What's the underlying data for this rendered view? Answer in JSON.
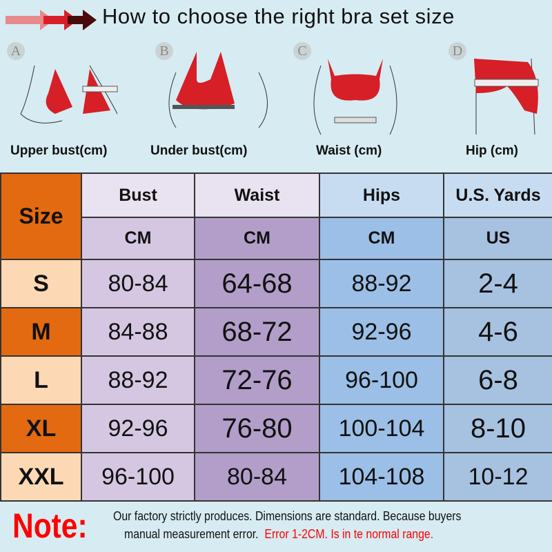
{
  "header": {
    "title": "How to choose the right bra set size"
  },
  "figures": [
    {
      "letter": "A",
      "caption": "Upper bust(cm)"
    },
    {
      "letter": "B",
      "caption": "Under bust(cm)"
    },
    {
      "letter": "C",
      "caption": "Waist (cm)"
    },
    {
      "letter": "D",
      "caption": "Hip (cm)"
    }
  ],
  "table": {
    "size_label": "Size",
    "columns": [
      {
        "name": "Bust",
        "unit": "CM"
      },
      {
        "name": "Waist",
        "unit": "CM"
      },
      {
        "name": "Hips",
        "unit": "CM"
      },
      {
        "name": "U.S. Yards",
        "unit": "US"
      }
    ],
    "rows": [
      {
        "size": "S",
        "values": [
          "80-84",
          "64-68",
          "88-92",
          "2-4"
        ]
      },
      {
        "size": "M",
        "values": [
          "84-88",
          "68-72",
          "92-96",
          "4-6"
        ]
      },
      {
        "size": "L",
        "values": [
          "88-92",
          "72-76",
          "96-100",
          "6-8"
        ]
      },
      {
        "size": "XL",
        "values": [
          "92-96",
          "76-80",
          "100-104",
          "8-10"
        ]
      },
      {
        "size": "XXL",
        "values": [
          "96-100",
          "80-84",
          "104-108",
          "10-12"
        ]
      }
    ]
  },
  "note": {
    "label": "Note:",
    "line1": "Our factory strictly produces.  Dimensions are standard.  Because buyers",
    "line2": "manual measurement error.",
    "line2_red": "Error 1-2CM.  Is in te normal range."
  },
  "colors": {
    "accent_red": "#d61f26",
    "size_orange": "#e36a10",
    "size_light": "#fcd9b4",
    "bust": "#d5c7e2",
    "waist": "#b29ec9",
    "hips": "#9bbfe6",
    "us": "#a7c1e0",
    "background": "#d7ebf2"
  }
}
